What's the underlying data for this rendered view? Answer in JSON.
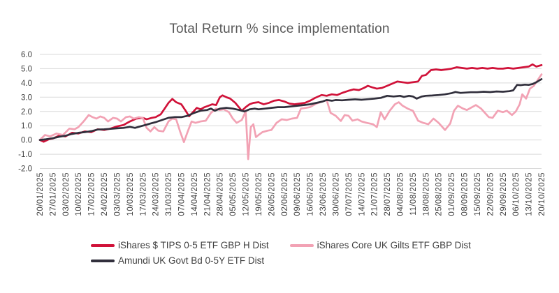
{
  "title": "Total Return % since implementation",
  "chart_data": {
    "type": "line",
    "title": "Total Return % since implementation",
    "xlabel": "",
    "ylabel": "",
    "ylim": [
      -2.0,
      6.0
    ],
    "y_tick_labels": [
      "6.0",
      "5.0",
      "4.0",
      "3.0",
      "2.0",
      "1.0",
      "0.0",
      "-1.0",
      "-2.0"
    ],
    "grid": "horizontal",
    "legend_position": "bottom",
    "x_tick_labels": [
      "20/01/2025",
      "27/01/2025",
      "03/02/2025",
      "10/02/2025",
      "17/02/2025",
      "24/02/2025",
      "03/03/2025",
      "10/03/2025",
      "17/03/2025",
      "24/03/2025",
      "31/03/2025",
      "07/04/2025",
      "14/04/2025",
      "21/04/2025",
      "28/04/2025",
      "05/05/2025",
      "12/05/2025",
      "19/05/2025",
      "26/05/2025",
      "02/06/2025",
      "09/06/2025",
      "16/06/2025",
      "23/06/2025",
      "30/06/2025",
      "07/07/2025",
      "14/07/2025",
      "21/07/2025",
      "28/07/2025",
      "04/08/2025",
      "11/08/2025",
      "18/08/2025",
      "25/08/2025",
      "01/09/2025",
      "08/09/2025",
      "15/09/2025",
      "22/09/2025",
      "29/09/2025",
      "06/10/2025",
      "13/10/2025",
      "20/10/2025"
    ],
    "x_note": "points are [week_index, total_return_pct]; week_index 0 = 20/01/2025, 39 = 20/10/2025",
    "series": [
      {
        "name": "iShares $ TIPS 0-5 ETF GBP H Dist",
        "color": "#d01239",
        "points": [
          [
            0,
            0
          ],
          [
            0.3,
            -0.12
          ],
          [
            0.7,
            0.05
          ],
          [
            1,
            0.1
          ],
          [
            1.5,
            0.3
          ],
          [
            2,
            0.25
          ],
          [
            2.5,
            0.5
          ],
          [
            3,
            0.45
          ],
          [
            3.5,
            0.6
          ],
          [
            4,
            0.55
          ],
          [
            4.5,
            0.75
          ],
          [
            5,
            0.7
          ],
          [
            5.5,
            0.8
          ],
          [
            6,
            0.95
          ],
          [
            6.5,
            1.05
          ],
          [
            7,
            1.3
          ],
          [
            7.5,
            1.5
          ],
          [
            8,
            1.55
          ],
          [
            8.3,
            1.45
          ],
          [
            8.7,
            1.55
          ],
          [
            9,
            1.6
          ],
          [
            9.4,
            1.8
          ],
          [
            9.7,
            2.2
          ],
          [
            10,
            2.6
          ],
          [
            10.3,
            2.88
          ],
          [
            10.6,
            2.65
          ],
          [
            11,
            2.5
          ],
          [
            11.3,
            2.1
          ],
          [
            11.6,
            1.66
          ],
          [
            11.9,
            1.95
          ],
          [
            12.2,
            2.25
          ],
          [
            12.5,
            2.15
          ],
          [
            12.8,
            2.3
          ],
          [
            13.1,
            2.4
          ],
          [
            13.4,
            2.5
          ],
          [
            13.7,
            2.45
          ],
          [
            14,
            3.0
          ],
          [
            14.2,
            3.13
          ],
          [
            14.5,
            3.0
          ],
          [
            14.8,
            2.9
          ],
          [
            15.2,
            2.6
          ],
          [
            15.7,
            2.05
          ],
          [
            16,
            2.3
          ],
          [
            16.3,
            2.5
          ],
          [
            16.6,
            2.6
          ],
          [
            17,
            2.65
          ],
          [
            17.4,
            2.5
          ],
          [
            17.8,
            2.6
          ],
          [
            18.2,
            2.75
          ],
          [
            18.6,
            2.8
          ],
          [
            19,
            2.7
          ],
          [
            19.4,
            2.55
          ],
          [
            19.8,
            2.5
          ],
          [
            20.2,
            2.55
          ],
          [
            20.6,
            2.6
          ],
          [
            21,
            2.75
          ],
          [
            21.4,
            2.95
          ],
          [
            21.9,
            3.15
          ],
          [
            22.3,
            3.1
          ],
          [
            22.7,
            3.2
          ],
          [
            23.1,
            3.15
          ],
          [
            23.5,
            3.3
          ],
          [
            24,
            3.45
          ],
          [
            24.4,
            3.55
          ],
          [
            24.8,
            3.5
          ],
          [
            25.2,
            3.65
          ],
          [
            25.5,
            3.8
          ],
          [
            25.8,
            3.7
          ],
          [
            26.2,
            3.6
          ],
          [
            26.6,
            3.65
          ],
          [
            27,
            3.8
          ],
          [
            27.4,
            3.95
          ],
          [
            27.8,
            4.1
          ],
          [
            28.2,
            4.05
          ],
          [
            28.6,
            4.0
          ],
          [
            29,
            4.05
          ],
          [
            29.4,
            4.1
          ],
          [
            29.7,
            4.5
          ],
          [
            30,
            4.55
          ],
          [
            30.4,
            4.9
          ],
          [
            30.8,
            4.95
          ],
          [
            31.2,
            4.9
          ],
          [
            31.6,
            4.95
          ],
          [
            32,
            5.0
          ],
          [
            32.4,
            5.1
          ],
          [
            32.8,
            5.05
          ],
          [
            33.2,
            5.0
          ],
          [
            33.6,
            5.05
          ],
          [
            34,
            5.0
          ],
          [
            34.4,
            5.05
          ],
          [
            34.8,
            5.0
          ],
          [
            35.2,
            5.05
          ],
          [
            35.6,
            5.0
          ],
          [
            36,
            5.0
          ],
          [
            36.4,
            5.05
          ],
          [
            36.8,
            5.0
          ],
          [
            37.2,
            5.05
          ],
          [
            37.6,
            5.1
          ],
          [
            38,
            5.15
          ],
          [
            38.3,
            5.3
          ],
          [
            38.6,
            5.15
          ],
          [
            39,
            5.25
          ]
        ]
      },
      {
        "name": "iShares Core UK Gilts ETF GBP Dist",
        "color": "#f2a2b4",
        "points": [
          [
            0,
            0
          ],
          [
            0.4,
            0.35
          ],
          [
            0.8,
            0.25
          ],
          [
            1.3,
            0.45
          ],
          [
            1.8,
            0.35
          ],
          [
            2.3,
            0.8
          ],
          [
            2.7,
            0.75
          ],
          [
            3,
            0.9
          ],
          [
            3.4,
            1.3
          ],
          [
            3.8,
            1.75
          ],
          [
            4.1,
            1.6
          ],
          [
            4.4,
            1.5
          ],
          [
            4.7,
            1.65
          ],
          [
            5,
            1.55
          ],
          [
            5.3,
            1.3
          ],
          [
            5.7,
            1.55
          ],
          [
            6,
            1.5
          ],
          [
            6.3,
            1.3
          ],
          [
            6.7,
            1.6
          ],
          [
            7,
            1.65
          ],
          [
            7.3,
            1.5
          ],
          [
            7.7,
            1.6
          ],
          [
            8,
            1.55
          ],
          [
            8.3,
            0.85
          ],
          [
            8.6,
            0.6
          ],
          [
            8.9,
            0.9
          ],
          [
            9.2,
            0.65
          ],
          [
            9.6,
            0.6
          ],
          [
            10,
            1.3
          ],
          [
            10.3,
            1.5
          ],
          [
            10.6,
            1.45
          ],
          [
            10.9,
            0.6
          ],
          [
            11.2,
            -0.15
          ],
          [
            11.5,
            0.6
          ],
          [
            11.8,
            1.3
          ],
          [
            12.1,
            1.2
          ],
          [
            12.5,
            1.3
          ],
          [
            12.9,
            1.35
          ],
          [
            13.3,
            1.9
          ],
          [
            13.7,
            2.2
          ],
          [
            14,
            2.1
          ],
          [
            14.3,
            2.15
          ],
          [
            14.7,
            1.95
          ],
          [
            15,
            1.5
          ],
          [
            15.3,
            1.2
          ],
          [
            15.7,
            1.4
          ],
          [
            16,
            2.0
          ],
          [
            16.2,
            -1.35
          ],
          [
            16.4,
            0.9
          ],
          [
            16.6,
            1.1
          ],
          [
            16.8,
            0.2
          ],
          [
            17,
            0.35
          ],
          [
            17.3,
            0.55
          ],
          [
            17.7,
            0.65
          ],
          [
            18,
            0.7
          ],
          [
            18.4,
            1.2
          ],
          [
            18.8,
            1.45
          ],
          [
            19.2,
            1.4
          ],
          [
            19.6,
            1.5
          ],
          [
            20,
            1.55
          ],
          [
            20.3,
            2.2
          ],
          [
            20.7,
            2.25
          ],
          [
            21,
            2.3
          ],
          [
            21.5,
            2.55
          ],
          [
            22,
            2.7
          ],
          [
            22.3,
            2.8
          ],
          [
            22.6,
            1.9
          ],
          [
            23,
            1.7
          ],
          [
            23.4,
            1.33
          ],
          [
            23.7,
            1.75
          ],
          [
            24,
            1.7
          ],
          [
            24.3,
            1.35
          ],
          [
            24.7,
            1.45
          ],
          [
            25,
            1.3
          ],
          [
            25.4,
            1.2
          ],
          [
            25.9,
            1.1
          ],
          [
            26.2,
            0.9
          ],
          [
            26.5,
            1.95
          ],
          [
            26.8,
            1.45
          ],
          [
            27.2,
            2.05
          ],
          [
            27.6,
            2.5
          ],
          [
            27.9,
            2.65
          ],
          [
            28.2,
            2.4
          ],
          [
            28.6,
            2.2
          ],
          [
            29,
            2.05
          ],
          [
            29.4,
            1.35
          ],
          [
            29.8,
            1.2
          ],
          [
            30.2,
            1.1
          ],
          [
            30.6,
            1.5
          ],
          [
            31,
            1.2
          ],
          [
            31.5,
            0.7
          ],
          [
            31.9,
            1.15
          ],
          [
            32.2,
            2.05
          ],
          [
            32.5,
            2.4
          ],
          [
            32.9,
            2.2
          ],
          [
            33.2,
            2.1
          ],
          [
            33.6,
            2.3
          ],
          [
            33.9,
            2.45
          ],
          [
            34.3,
            2.2
          ],
          [
            34.6,
            1.9
          ],
          [
            34.9,
            1.6
          ],
          [
            35.2,
            1.55
          ],
          [
            35.6,
            2.05
          ],
          [
            36,
            1.95
          ],
          [
            36.3,
            2.05
          ],
          [
            36.7,
            1.75
          ],
          [
            37,
            2.0
          ],
          [
            37.3,
            2.5
          ],
          [
            37.5,
            3.2
          ],
          [
            37.8,
            2.9
          ],
          [
            38.1,
            3.6
          ],
          [
            38.4,
            3.8
          ],
          [
            38.7,
            4.2
          ],
          [
            39,
            4.6
          ]
        ]
      },
      {
        "name": "Amundi UK Govt Bd 0-5Y ETF Dist",
        "color": "#312f3c",
        "points": [
          [
            0,
            0
          ],
          [
            0.5,
            0.05
          ],
          [
            1,
            0.12
          ],
          [
            1.5,
            0.22
          ],
          [
            2,
            0.3
          ],
          [
            2.5,
            0.42
          ],
          [
            3,
            0.5
          ],
          [
            3.5,
            0.55
          ],
          [
            4,
            0.62
          ],
          [
            4.5,
            0.73
          ],
          [
            5,
            0.75
          ],
          [
            5.5,
            0.78
          ],
          [
            6,
            0.82
          ],
          [
            6.5,
            0.85
          ],
          [
            7,
            0.92
          ],
          [
            7.4,
            0.85
          ],
          [
            7.8,
            0.95
          ],
          [
            8.2,
            1.05
          ],
          [
            8.6,
            1.15
          ],
          [
            9,
            1.25
          ],
          [
            9.5,
            1.4
          ],
          [
            10,
            1.55
          ],
          [
            10.5,
            1.6
          ],
          [
            11,
            1.6
          ],
          [
            11.5,
            1.7
          ],
          [
            12,
            1.9
          ],
          [
            12.5,
            2.05
          ],
          [
            13,
            2.1
          ],
          [
            13.3,
            2.2
          ],
          [
            13.6,
            2.05
          ],
          [
            14,
            2.2
          ],
          [
            14.5,
            2.25
          ],
          [
            15,
            2.2
          ],
          [
            15.5,
            2.1
          ],
          [
            15.9,
            2.0
          ],
          [
            16.3,
            2.15
          ],
          [
            16.7,
            2.2
          ],
          [
            17,
            2.15
          ],
          [
            17.5,
            2.2
          ],
          [
            18,
            2.25
          ],
          [
            18.5,
            2.3
          ],
          [
            19,
            2.3
          ],
          [
            19.5,
            2.35
          ],
          [
            20,
            2.4
          ],
          [
            20.5,
            2.45
          ],
          [
            21,
            2.5
          ],
          [
            21.5,
            2.6
          ],
          [
            22,
            2.7
          ],
          [
            22.3,
            2.8
          ],
          [
            22.7,
            2.75
          ],
          [
            23,
            2.8
          ],
          [
            23.5,
            2.78
          ],
          [
            24,
            2.82
          ],
          [
            24.5,
            2.85
          ],
          [
            25,
            2.82
          ],
          [
            25.5,
            2.86
          ],
          [
            26,
            2.9
          ],
          [
            26.5,
            2.95
          ],
          [
            27,
            3.1
          ],
          [
            27.5,
            3.05
          ],
          [
            28,
            3.1
          ],
          [
            28.3,
            3.02
          ],
          [
            28.7,
            3.1
          ],
          [
            29,
            3.05
          ],
          [
            29.3,
            2.9
          ],
          [
            29.7,
            3.05
          ],
          [
            30,
            3.1
          ],
          [
            30.5,
            3.12
          ],
          [
            31,
            3.15
          ],
          [
            31.5,
            3.2
          ],
          [
            32,
            3.28
          ],
          [
            32.3,
            3.37
          ],
          [
            32.7,
            3.3
          ],
          [
            33,
            3.32
          ],
          [
            33.5,
            3.35
          ],
          [
            34,
            3.35
          ],
          [
            34.5,
            3.38
          ],
          [
            35,
            3.36
          ],
          [
            35.5,
            3.4
          ],
          [
            36,
            3.38
          ],
          [
            36.5,
            3.42
          ],
          [
            36.8,
            3.48
          ],
          [
            37.1,
            3.86
          ],
          [
            37.4,
            3.84
          ],
          [
            37.7,
            3.88
          ],
          [
            38,
            3.86
          ],
          [
            38.3,
            3.92
          ],
          [
            38.6,
            4.05
          ],
          [
            39,
            4.27
          ]
        ]
      }
    ],
    "colors": {
      "grid": "#d9d9d9",
      "title_text": "#595959",
      "tick_text": "#404040",
      "legend_text": "#404040"
    }
  }
}
